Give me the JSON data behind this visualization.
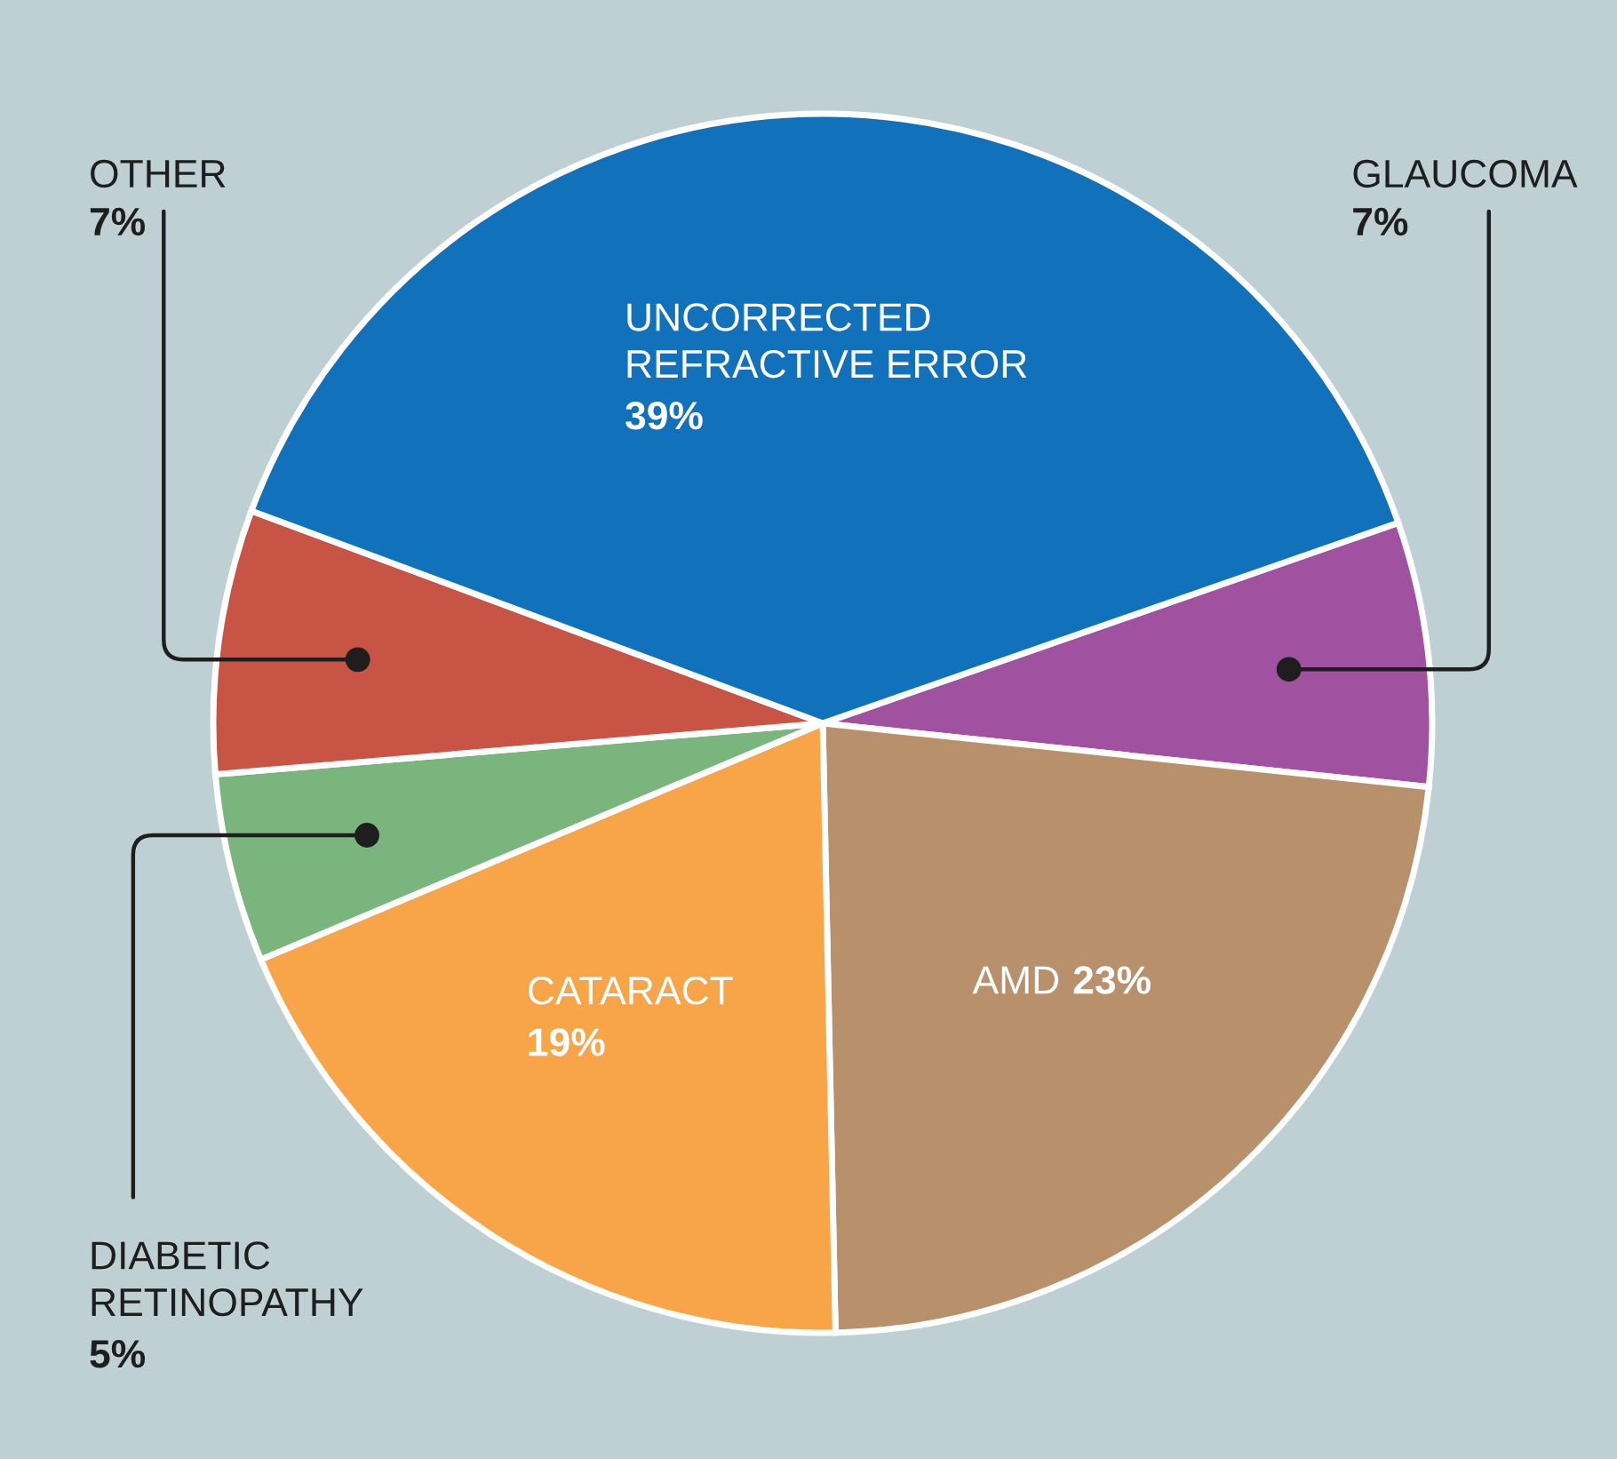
{
  "chart_data": {
    "type": "pie",
    "categories": [
      "GLAUCOMA",
      "AMD",
      "CATARACT",
      "DIABETIC\nRETINOPATHY",
      "OTHER",
      "UNCORRECTED\nREFRACTIVE ERROR"
    ],
    "values": [
      7,
      23,
      19,
      5,
      7,
      39
    ],
    "value_labels": [
      "7%",
      "23%",
      "19%",
      "5%",
      "7%",
      "39%"
    ],
    "colors": [
      "#a052a0",
      "#b8906c",
      "#f8a54a",
      "#7ab57e",
      "#c85446",
      "#1172bb"
    ]
  }
}
